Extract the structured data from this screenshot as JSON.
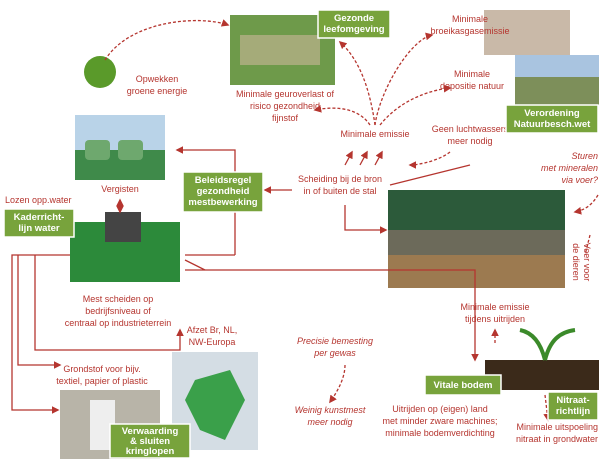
{
  "boxes": {
    "gezonde_leefomgeving": [
      "Gezonde",
      "leefomgeving"
    ],
    "verordening": [
      "Verordening",
      "Natuurbesch.wet"
    ],
    "beleidsregel": [
      "Beleidsregel",
      "gezondheid",
      "mestbewerking"
    ],
    "kaderrichtlijn": [
      "Kaderricht-",
      "lijn water"
    ],
    "vitale_bodem": [
      "Vitale bodem"
    ],
    "nitraatrichtlijn": [
      "Nitraat-",
      "richtlijn"
    ],
    "verwaarding": [
      "Verwaarding",
      "& sluiten",
      "kringlopen"
    ]
  },
  "labels": {
    "broeikasgas": [
      "Minimale",
      "broeikasgasemissie"
    ],
    "depositie": [
      "Minimale",
      "depositie natuur"
    ],
    "opwekken": [
      "Opwekken",
      "groene energie"
    ],
    "geuroverlast": [
      "Minimale geuroverlast of",
      "risico gezondheid",
      "fijnstof"
    ],
    "minimale_emissie": [
      "Minimale  emissie"
    ],
    "luchtwassers": [
      "Geen luchtwassers",
      "meer nodig"
    ],
    "sturen": [
      "Sturen",
      "met mineralen",
      "via voer?"
    ],
    "vergisten": [
      "Vergisten"
    ],
    "scheiding": [
      "Scheiding bij de bron",
      "in of buiten  de stal"
    ],
    "lozen": [
      "Lozen opp.water"
    ],
    "voer": [
      "Voer voor",
      "de dieren"
    ],
    "mest_scheiden": [
      "Mest scheiden op",
      "bedrijfsniveau of",
      "centraal op industrieterrein"
    ],
    "afzet": [
      "Afzet Br, NL,",
      "NW-Europa"
    ],
    "emissie_uitrijden": [
      "Minimale emissie",
      "tijdens uitrijden"
    ],
    "precisie": [
      "Precisie bemesting",
      "per gewas"
    ],
    "grondstof": [
      "Grondstof voor bijv.",
      "textiel, papier of plastic"
    ],
    "kunstmest": [
      "Weinig kunstmest",
      "meer nodig"
    ],
    "uitrijden": [
      "Uitrijden op (eigen) land",
      "met minder zware machines;",
      "minimale bodemverdichting"
    ],
    "uitspoeling": [
      "Minimale uitspoeling",
      "nitraat in grondwater"
    ]
  }
}
